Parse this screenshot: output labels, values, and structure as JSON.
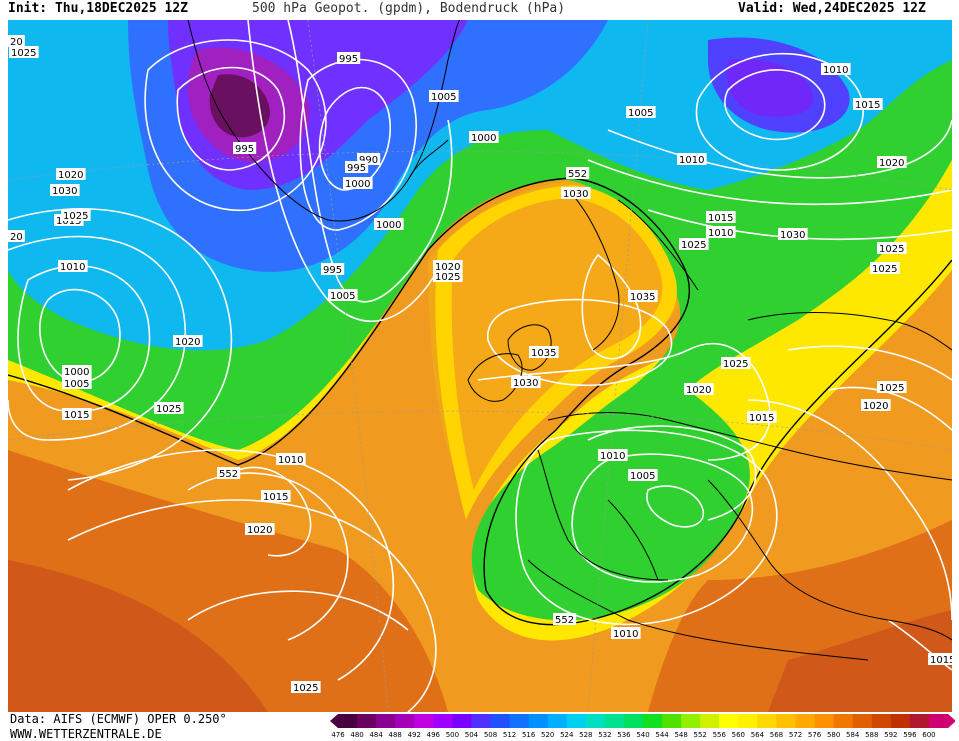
{
  "header": {
    "init": "Init: Thu,18DEC2025 12Z",
    "title": "500 hPa Geopot. (gpdm), Bodendruck (hPa)",
    "valid": "Valid: Wed,24DEC2025 12Z"
  },
  "footer": {
    "data_source": "Data: AIFS (ECMWF) OPER 0.250°",
    "website": "WWW.WETTERZENTRALE.DE"
  },
  "colorbar": {
    "labels": [
      "476",
      "480",
      "484",
      "488",
      "492",
      "496",
      "500",
      "504",
      "508",
      "512",
      "516",
      "520",
      "524",
      "528",
      "532",
      "536",
      "540",
      "544",
      "548",
      "552",
      "556",
      "560",
      "564",
      "568",
      "572",
      "576",
      "580",
      "584",
      "588",
      "592",
      "596",
      "600"
    ],
    "colors": [
      "#4a0040",
      "#6a0060",
      "#8a0090",
      "#a400b8",
      "#c000e0",
      "#a000ff",
      "#7a00ff",
      "#5030ff",
      "#2050ff",
      "#1070ff",
      "#0090ff",
      "#00b0ff",
      "#00d0f0",
      "#00e0c0",
      "#00e090",
      "#00e060",
      "#10e020",
      "#50e000",
      "#90f000",
      "#d0f000",
      "#ffff00",
      "#fff000",
      "#ffd800",
      "#ffc000",
      "#ffa800",
      "#ff9000",
      "#f07800",
      "#e06000",
      "#d04800",
      "#c03000",
      "#b01830",
      "#d00070"
    ]
  },
  "isobar_labels": [
    {
      "text": "995"
    },
    {
      "text": "995"
    },
    {
      "text": "1005"
    },
    {
      "text": "1000"
    },
    {
      "text": "990"
    },
    {
      "text": "995"
    },
    {
      "text": "1000"
    },
    {
      "text": "1000"
    },
    {
      "text": "995"
    },
    {
      "text": "1005"
    },
    {
      "text": "1005"
    },
    {
      "text": "1010"
    },
    {
      "text": "1010"
    },
    {
      "text": "1015"
    },
    {
      "text": "1020"
    },
    {
      "text": "1010"
    },
    {
      "text": "1015"
    },
    {
      "text": "1020"
    },
    {
      "text": "1025"
    },
    {
      "text": "1025"
    },
    {
      "text": "1030"
    },
    {
      "text": "1025"
    },
    {
      "text": "1030"
    },
    {
      "text": "1025"
    },
    {
      "text": "1015"
    },
    {
      "text": "1010"
    },
    {
      "text": "1020"
    },
    {
      "text": "1000"
    },
    {
      "text": "1005"
    },
    {
      "text": "1015"
    },
    {
      "text": "1025"
    },
    {
      "text": "552"
    },
    {
      "text": "1010"
    },
    {
      "text": "1015"
    },
    {
      "text": "1020"
    },
    {
      "text": "1020"
    },
    {
      "text": "1025"
    },
    {
      "text": "552"
    },
    {
      "text": "1030"
    },
    {
      "text": "1025"
    },
    {
      "text": "1035"
    },
    {
      "text": "1035"
    },
    {
      "text": "1030"
    },
    {
      "text": "1025"
    },
    {
      "text": "1020"
    },
    {
      "text": "1015"
    },
    {
      "text": "1025"
    },
    {
      "text": "1020"
    },
    {
      "text": "1010"
    },
    {
      "text": "1005"
    },
    {
      "text": "552"
    },
    {
      "text": "1010"
    },
    {
      "text": "1025"
    },
    {
      "text": "1015"
    },
    {
      "text": "20"
    },
    {
      "text": "20"
    }
  ]
}
